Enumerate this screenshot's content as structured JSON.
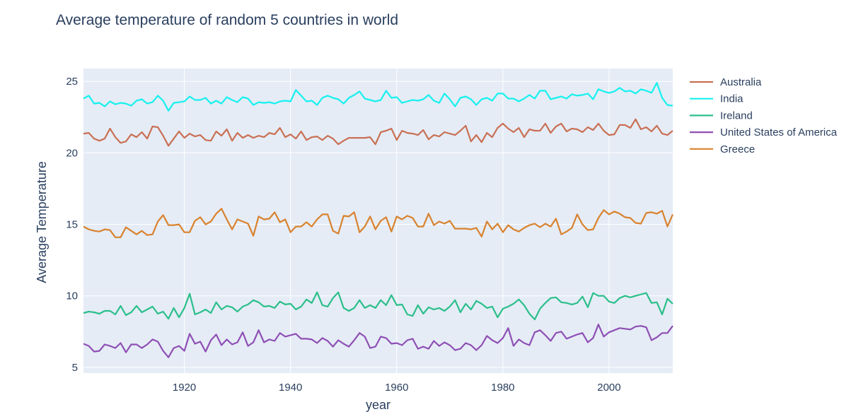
{
  "chart_data": {
    "type": "line",
    "title": "Average temperature of random 5 countries in world",
    "xlabel": "year",
    "ylabel": "Average Temperature",
    "xlim": [
      1901,
      2012
    ],
    "ylim": [
      4.6,
      25.9
    ],
    "xticks": [
      1920,
      1940,
      1960,
      1980,
      2000
    ],
    "yticks": [
      5,
      10,
      15,
      20,
      25
    ],
    "grid": true,
    "legend_position": "right",
    "x": [
      1901,
      1902,
      1903,
      1904,
      1905,
      1906,
      1907,
      1908,
      1909,
      1910,
      1911,
      1912,
      1913,
      1914,
      1915,
      1916,
      1917,
      1918,
      1919,
      1920,
      1921,
      1922,
      1923,
      1924,
      1925,
      1926,
      1927,
      1928,
      1929,
      1930,
      1931,
      1932,
      1933,
      1934,
      1935,
      1936,
      1937,
      1938,
      1939,
      1940,
      1941,
      1942,
      1943,
      1944,
      1945,
      1946,
      1947,
      1948,
      1949,
      1950,
      1951,
      1952,
      1953,
      1954,
      1955,
      1956,
      1957,
      1958,
      1959,
      1960,
      1961,
      1962,
      1963,
      1964,
      1965,
      1966,
      1967,
      1968,
      1969,
      1970,
      1971,
      1972,
      1973,
      1974,
      1975,
      1976,
      1977,
      1978,
      1979,
      1980,
      1981,
      1982,
      1983,
      1984,
      1985,
      1986,
      1987,
      1988,
      1989,
      1990,
      1991,
      1992,
      1993,
      1994,
      1995,
      1996,
      1997,
      1998,
      1999,
      2000,
      2001,
      2002,
      2003,
      2004,
      2005,
      2006,
      2007,
      2008,
      2009,
      2010,
      2011,
      2012
    ],
    "series": [
      {
        "name": "Australia",
        "color": "#c97054",
        "values": [
          21.35,
          21.4,
          21.0,
          20.85,
          21.0,
          21.7,
          21.1,
          20.7,
          20.8,
          21.3,
          21.1,
          21.45,
          21.0,
          21.85,
          21.8,
          21.2,
          20.5,
          21.0,
          21.5,
          21.05,
          21.35,
          21.15,
          21.25,
          20.9,
          20.85,
          21.5,
          21.2,
          21.65,
          20.85,
          21.4,
          21.05,
          21.25,
          21.05,
          21.2,
          21.1,
          21.4,
          21.3,
          21.75,
          21.1,
          21.3,
          21.0,
          21.5,
          20.9,
          21.1,
          21.15,
          20.9,
          21.2,
          21.0,
          20.6,
          20.85,
          21.05,
          21.05,
          21.05,
          21.05,
          21.1,
          20.6,
          21.45,
          21.55,
          21.7,
          20.9,
          21.55,
          21.4,
          21.35,
          21.25,
          21.6,
          20.95,
          21.25,
          21.15,
          21.45,
          21.35,
          21.25,
          21.55,
          21.9,
          20.8,
          21.25,
          20.75,
          21.4,
          21.1,
          21.75,
          22.05,
          21.7,
          21.45,
          21.75,
          21.1,
          21.65,
          21.55,
          21.55,
          22.05,
          21.4,
          21.85,
          22.05,
          21.5,
          21.7,
          21.65,
          21.45,
          21.8,
          21.6,
          22.05,
          21.55,
          21.25,
          21.3,
          21.95,
          21.95,
          21.75,
          22.35,
          21.65,
          21.8,
          21.5,
          21.9,
          21.35,
          21.25,
          21.55
        ]
      },
      {
        "name": "India",
        "color": "#17f1ef",
        "values": [
          23.8,
          24.0,
          23.45,
          23.5,
          23.25,
          23.6,
          23.4,
          23.5,
          23.45,
          23.3,
          23.65,
          23.75,
          23.45,
          23.55,
          24.0,
          23.65,
          22.95,
          23.5,
          23.55,
          23.6,
          23.95,
          23.7,
          23.7,
          23.85,
          23.45,
          23.65,
          23.45,
          23.9,
          23.7,
          23.55,
          23.9,
          23.8,
          23.35,
          23.55,
          23.5,
          23.55,
          23.45,
          23.6,
          23.65,
          23.6,
          24.4,
          24.0,
          23.6,
          23.65,
          23.35,
          23.85,
          24.0,
          23.85,
          23.75,
          23.45,
          23.85,
          24.05,
          24.3,
          23.8,
          23.7,
          23.6,
          23.7,
          24.35,
          23.85,
          23.9,
          23.5,
          23.6,
          23.7,
          23.65,
          23.75,
          24.05,
          23.65,
          23.5,
          24.15,
          23.75,
          23.25,
          23.85,
          23.95,
          23.75,
          23.35,
          23.75,
          23.85,
          23.65,
          24.15,
          24.15,
          23.8,
          23.8,
          23.6,
          23.8,
          24.05,
          23.8,
          24.35,
          24.35,
          23.75,
          23.85,
          23.95,
          23.8,
          24.1,
          24.0,
          24.05,
          24.15,
          23.75,
          24.45,
          24.3,
          24.2,
          24.3,
          24.55,
          24.3,
          24.35,
          24.15,
          24.45,
          24.35,
          24.2,
          24.9,
          23.85,
          23.35,
          23.3
        ]
      },
      {
        "name": "Ireland",
        "color": "#2bbf8a",
        "values": [
          8.8,
          8.9,
          8.85,
          8.75,
          8.95,
          8.95,
          8.7,
          9.3,
          8.65,
          8.85,
          9.3,
          8.85,
          9.05,
          9.25,
          8.75,
          8.9,
          8.4,
          9.15,
          8.5,
          9.15,
          10.15,
          8.7,
          8.85,
          9.05,
          8.8,
          9.55,
          9.05,
          9.3,
          9.2,
          8.9,
          9.25,
          9.4,
          9.7,
          9.55,
          9.25,
          9.3,
          9.15,
          9.6,
          9.4,
          9.45,
          9.05,
          9.25,
          9.75,
          9.5,
          10.25,
          9.35,
          9.25,
          9.85,
          10.25,
          9.15,
          8.95,
          9.15,
          9.7,
          9.15,
          9.35,
          9.15,
          9.7,
          9.35,
          10.05,
          9.35,
          9.4,
          8.7,
          8.6,
          9.35,
          8.75,
          9.2,
          9.05,
          9.15,
          8.95,
          9.25,
          9.7,
          8.85,
          9.45,
          9.05,
          9.65,
          9.45,
          9.15,
          9.25,
          8.5,
          9.1,
          9.25,
          9.45,
          9.75,
          9.35,
          8.75,
          8.35,
          9.1,
          9.5,
          9.85,
          9.9,
          9.55,
          9.5,
          9.4,
          9.5,
          9.95,
          9.2,
          10.2,
          10.0,
          10.0,
          9.6,
          9.5,
          9.85,
          10.0,
          9.9,
          10.0,
          10.1,
          10.2,
          9.5,
          9.55,
          8.7,
          9.8,
          9.45
        ]
      },
      {
        "name": "United States of America",
        "color": "#8e4fb4",
        "values": [
          6.65,
          6.5,
          6.1,
          6.15,
          6.6,
          6.5,
          6.35,
          6.7,
          6.05,
          6.6,
          6.6,
          6.35,
          6.6,
          6.95,
          6.8,
          6.15,
          5.7,
          6.35,
          6.5,
          6.15,
          7.35,
          6.65,
          6.8,
          6.1,
          6.9,
          7.3,
          6.55,
          6.95,
          6.6,
          6.75,
          7.45,
          6.5,
          6.75,
          7.6,
          6.75,
          6.95,
          6.85,
          7.4,
          7.15,
          7.25,
          7.35,
          7.0,
          7.0,
          6.95,
          6.7,
          7.05,
          6.85,
          6.45,
          6.9,
          6.65,
          6.45,
          6.9,
          7.4,
          7.15,
          6.35,
          6.45,
          7.15,
          7.05,
          6.65,
          6.7,
          6.55,
          6.9,
          7.0,
          6.3,
          6.45,
          6.3,
          6.85,
          6.5,
          6.75,
          6.55,
          6.2,
          6.3,
          6.7,
          6.55,
          6.2,
          6.55,
          7.2,
          6.9,
          6.7,
          7.05,
          7.75,
          6.5,
          6.95,
          6.7,
          6.55,
          7.45,
          7.6,
          7.25,
          6.85,
          7.4,
          7.5,
          7.0,
          7.15,
          7.3,
          7.4,
          6.75,
          7.05,
          8.0,
          7.15,
          7.45,
          7.6,
          7.75,
          7.7,
          7.65,
          7.85,
          7.9,
          7.8,
          6.9,
          7.1,
          7.4,
          7.4,
          7.9
        ]
      },
      {
        "name": "Greece",
        "color": "#d9822e",
        "values": [
          14.85,
          14.65,
          14.55,
          14.5,
          14.65,
          14.6,
          14.1,
          14.1,
          14.8,
          14.55,
          14.3,
          14.55,
          14.25,
          14.3,
          15.2,
          15.65,
          14.95,
          14.95,
          15.0,
          14.45,
          14.45,
          15.25,
          15.5,
          15.0,
          15.2,
          15.75,
          16.1,
          15.35,
          14.65,
          15.35,
          15.2,
          15.05,
          14.2,
          15.55,
          15.35,
          15.4,
          15.85,
          15.15,
          15.35,
          14.45,
          14.85,
          14.85,
          15.15,
          14.85,
          15.35,
          15.7,
          15.7,
          14.55,
          14.35,
          15.6,
          15.55,
          15.85,
          14.45,
          14.85,
          15.55,
          14.65,
          15.25,
          15.5,
          14.5,
          15.55,
          15.35,
          15.6,
          15.45,
          14.85,
          14.85,
          15.75,
          14.95,
          15.2,
          15.05,
          15.25,
          14.7,
          14.7,
          14.7,
          14.65,
          14.75,
          14.15,
          15.2,
          14.65,
          15.05,
          14.45,
          14.95,
          14.65,
          14.5,
          14.75,
          14.95,
          15.05,
          14.8,
          15.05,
          14.85,
          15.4,
          14.3,
          14.5,
          14.75,
          15.7,
          15.0,
          14.6,
          14.65,
          15.45,
          16.0,
          15.7,
          15.9,
          15.75,
          15.5,
          15.45,
          15.1,
          15.05,
          15.8,
          15.85,
          15.75,
          15.95,
          14.85,
          15.7
        ]
      }
    ]
  }
}
